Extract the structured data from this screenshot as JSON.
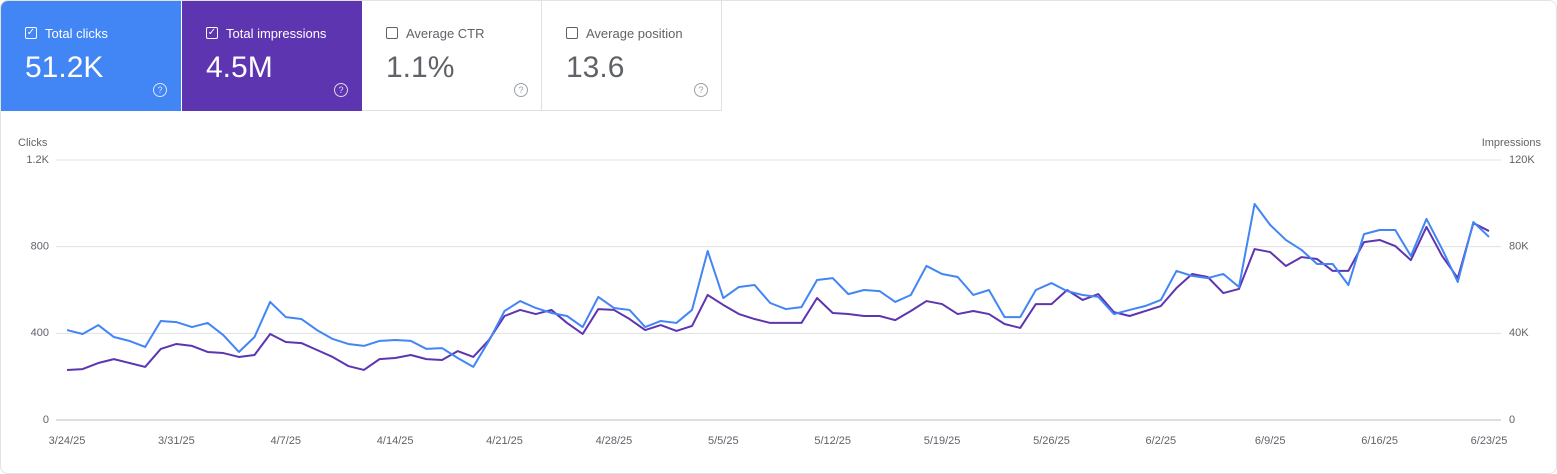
{
  "cards": [
    {
      "label": "Total clicks",
      "value": "51.2K",
      "checked": true,
      "color": "#4285f4"
    },
    {
      "label": "Total impressions",
      "value": "4.5M",
      "checked": true,
      "color": "#5e35b1"
    },
    {
      "label": "Average CTR",
      "value": "1.1%",
      "checked": false,
      "color": "#ffffff"
    },
    {
      "label": "Average position",
      "value": "13.6",
      "checked": false,
      "color": "#ffffff"
    }
  ],
  "chart_data": {
    "type": "line",
    "y_label": "Clicks",
    "y2_label": "Impressions",
    "categories": [
      "3/24/25",
      null,
      null,
      null,
      null,
      null,
      null,
      "3/31/25",
      null,
      null,
      null,
      null,
      null,
      null,
      "4/7/25",
      null,
      null,
      null,
      null,
      null,
      null,
      "4/14/25",
      null,
      null,
      null,
      null,
      null,
      null,
      "4/21/25",
      null,
      null,
      null,
      null,
      null,
      null,
      "4/28/25",
      null,
      null,
      null,
      null,
      null,
      null,
      "5/5/25",
      null,
      null,
      null,
      null,
      null,
      null,
      "5/12/25",
      null,
      null,
      null,
      null,
      null,
      null,
      "5/19/25",
      null,
      null,
      null,
      null,
      null,
      null,
      "5/26/25",
      null,
      null,
      null,
      null,
      null,
      null,
      "6/2/25",
      null,
      null,
      null,
      null,
      null,
      null,
      "6/9/25",
      null,
      null,
      null,
      null,
      null,
      null,
      "6/16/25",
      null,
      null,
      null,
      null,
      null,
      null,
      "6/23/25"
    ],
    "series": [
      {
        "name": "Clicks",
        "color": "#4285f4",
        "values": [
          415,
          397,
          438,
          383,
          365,
          337,
          457,
          452,
          429,
          448,
          392,
          314,
          383,
          545,
          475,
          466,
          415,
          374,
          351,
          342,
          365,
          369,
          365,
          328,
          332,
          286,
          245,
          365,
          503,
          549,
          517,
          494,
          480,
          429,
          568,
          517,
          508,
          429,
          457,
          448,
          508,
          780,
          563,
          614,
          623,
          540,
          512,
          521,
          646,
          655,
          581,
          600,
          595,
          545,
          577,
          711,
          674,
          660,
          577,
          600,
          475,
          475,
          600,
          632,
          595,
          577,
          568,
          489,
          508,
          526,
          554,
          688,
          665,
          655,
          674,
          614,
          997,
          900,
          831,
          785,
          720,
          720,
          623,
          858,
          877,
          877,
          757,
          928,
          789,
          637,
          914,
          845
        ]
      },
      {
        "name": "Impressions",
        "color": "#5e35b1",
        "axis": "y2",
        "values": [
          23100,
          23500,
          26300,
          28100,
          26300,
          24500,
          32800,
          35100,
          34200,
          31400,
          30900,
          29100,
          30000,
          39700,
          36000,
          35500,
          32300,
          29100,
          24900,
          23100,
          28100,
          28600,
          30000,
          28100,
          27700,
          31800,
          29100,
          36900,
          48000,
          50800,
          48900,
          50800,
          44800,
          39700,
          51200,
          50800,
          46600,
          41500,
          43800,
          41100,
          43400,
          57700,
          53100,
          48900,
          46600,
          44800,
          44800,
          44800,
          56300,
          49400,
          48900,
          48000,
          48000,
          46100,
          50300,
          54900,
          53500,
          48900,
          50300,
          48900,
          44300,
          42500,
          53500,
          53500,
          60000,
          55400,
          58100,
          49800,
          48000,
          50300,
          52600,
          60900,
          67400,
          66000,
          58600,
          60500,
          78900,
          77500,
          71100,
          75200,
          74300,
          68800,
          68800,
          82100,
          83100,
          80300,
          73800,
          89100,
          75700,
          65500,
          90900,
          87200
        ]
      }
    ],
    "ylim": [
      0,
      1200
    ],
    "yticks": [
      0,
      400,
      800,
      {
        "value": 1200,
        "label": "1.2K"
      }
    ],
    "y2lim": [
      0,
      120000
    ],
    "y2ticks": [
      0,
      {
        "value": 40000,
        "label": "40K"
      },
      {
        "value": 80000,
        "label": "80K"
      },
      {
        "value": 120000,
        "label": "120K"
      }
    ],
    "grid": true
  }
}
